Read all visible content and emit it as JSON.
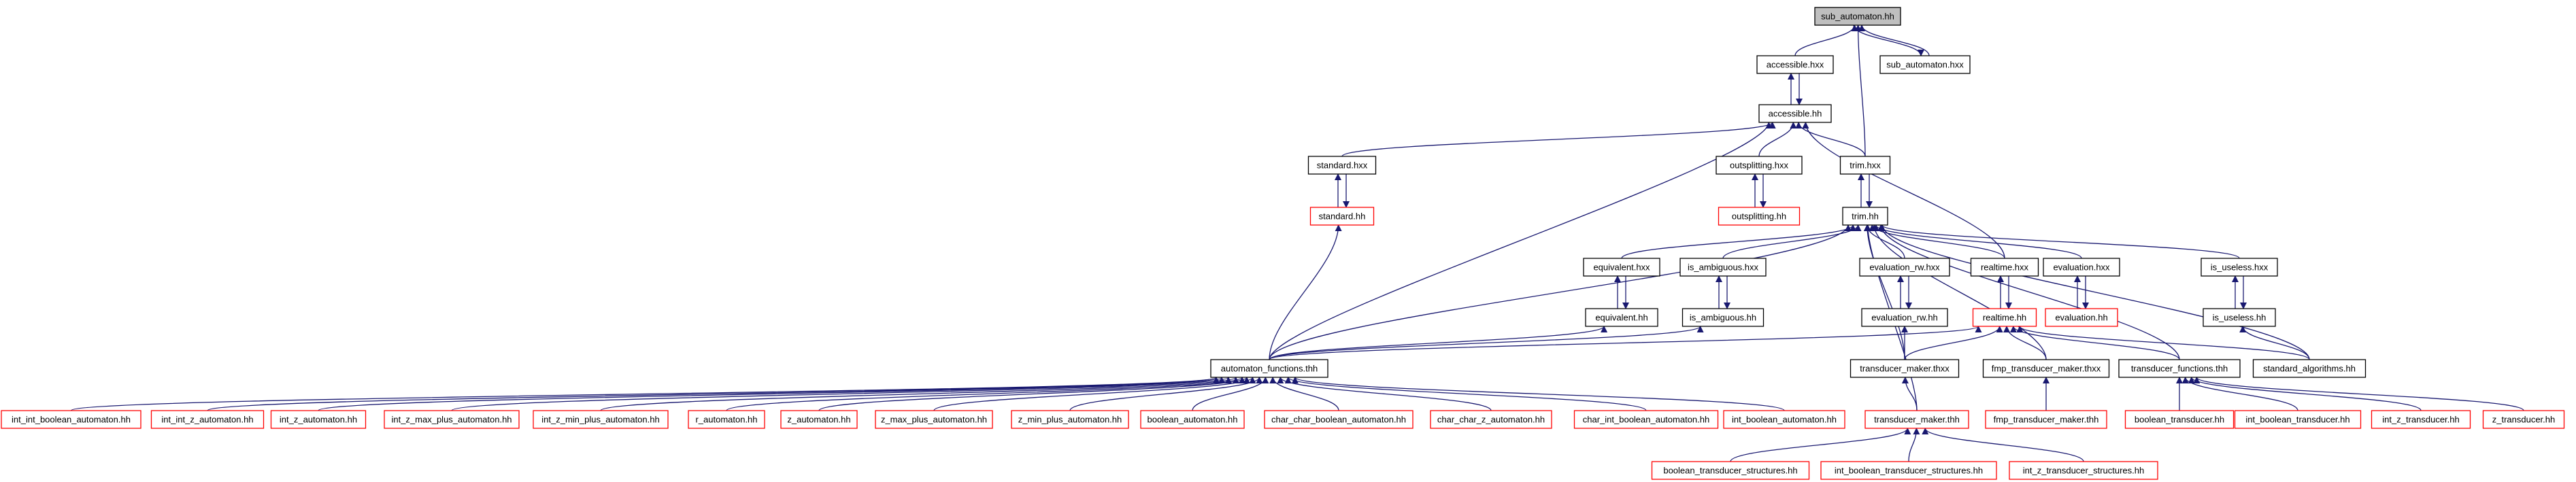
{
  "nodes": [
    {
      "id": "sub_automaton_hh",
      "label": "sub_automaton.hh",
      "style": "current"
    },
    {
      "id": "accessible_hxx",
      "label": "accessible.hxx",
      "style": "normal"
    },
    {
      "id": "sub_automaton_hxx",
      "label": "sub_automaton.hxx",
      "style": "normal"
    },
    {
      "id": "accessible_hh",
      "label": "accessible.hh",
      "style": "normal"
    },
    {
      "id": "standard_hxx",
      "label": "standard.hxx",
      "style": "normal"
    },
    {
      "id": "outsplitting_hxx",
      "label": "outsplitting.hxx",
      "style": "normal"
    },
    {
      "id": "trim_hxx",
      "label": "trim.hxx",
      "style": "normal"
    },
    {
      "id": "standard_hh",
      "label": "standard.hh",
      "style": "truncated"
    },
    {
      "id": "outsplitting_hh",
      "label": "outsplitting.hh",
      "style": "truncated"
    },
    {
      "id": "trim_hh",
      "label": "trim.hh",
      "style": "normal"
    },
    {
      "id": "equivalent_hxx",
      "label": "equivalent.hxx",
      "style": "normal"
    },
    {
      "id": "is_ambiguous_hxx",
      "label": "is_ambiguous.hxx",
      "style": "normal"
    },
    {
      "id": "evaluation_rw_hxx",
      "label": "evaluation_rw.hxx",
      "style": "normal"
    },
    {
      "id": "realtime_hxx",
      "label": "realtime.hxx",
      "style": "normal"
    },
    {
      "id": "evaluation_hxx",
      "label": "evaluation.hxx",
      "style": "normal"
    },
    {
      "id": "is_useless_hxx",
      "label": "is_useless.hxx",
      "style": "normal"
    },
    {
      "id": "equivalent_hh",
      "label": "equivalent.hh",
      "style": "normal"
    },
    {
      "id": "is_ambiguous_hh",
      "label": "is_ambiguous.hh",
      "style": "normal"
    },
    {
      "id": "evaluation_rw_hh",
      "label": "evaluation_rw.hh",
      "style": "normal"
    },
    {
      "id": "realtime_hh",
      "label": "realtime.hh",
      "style": "truncated"
    },
    {
      "id": "evaluation_hh",
      "label": "evaluation.hh",
      "style": "truncated"
    },
    {
      "id": "is_useless_hh",
      "label": "is_useless.hh",
      "style": "normal"
    },
    {
      "id": "automaton_functions_thh",
      "label": "automaton_functions.thh",
      "style": "normal"
    },
    {
      "id": "transducer_maker_thxx",
      "label": "transducer_maker.thxx",
      "style": "normal"
    },
    {
      "id": "fmp_transducer_maker_thxx",
      "label": "fmp_transducer_maker.thxx",
      "style": "normal"
    },
    {
      "id": "transducer_functions_thh",
      "label": "transducer_functions.thh",
      "style": "normal"
    },
    {
      "id": "standard_algorithms_hh",
      "label": "standard_algorithms.hh",
      "style": "normal"
    },
    {
      "id": "int_int_boolean_automaton_hh",
      "label": "int_int_boolean_automaton.hh",
      "style": "truncated"
    },
    {
      "id": "int_int_z_automaton_hh",
      "label": "int_int_z_automaton.hh",
      "style": "truncated"
    },
    {
      "id": "int_z_automaton_hh",
      "label": "int_z_automaton.hh",
      "style": "truncated"
    },
    {
      "id": "int_z_max_plus_automaton_hh",
      "label": "int_z_max_plus_automaton.hh",
      "style": "truncated"
    },
    {
      "id": "int_z_min_plus_automaton_hh",
      "label": "int_z_min_plus_automaton.hh",
      "style": "truncated"
    },
    {
      "id": "r_automaton_hh",
      "label": "r_automaton.hh",
      "style": "truncated"
    },
    {
      "id": "z_automaton_hh",
      "label": "z_automaton.hh",
      "style": "truncated"
    },
    {
      "id": "z_max_plus_automaton_hh",
      "label": "z_max_plus_automaton.hh",
      "style": "truncated"
    },
    {
      "id": "z_min_plus_automaton_hh",
      "label": "z_min_plus_automaton.hh",
      "style": "truncated"
    },
    {
      "id": "boolean_automaton_hh",
      "label": "boolean_automaton.hh",
      "style": "truncated"
    },
    {
      "id": "char_char_boolean_automaton_hh",
      "label": "char_char_boolean_automaton.hh",
      "style": "truncated"
    },
    {
      "id": "char_char_z_automaton_hh",
      "label": "char_char_z_automaton.hh",
      "style": "truncated"
    },
    {
      "id": "char_int_boolean_automaton_hh",
      "label": "char_int_boolean_automaton.hh",
      "style": "truncated"
    },
    {
      "id": "int_boolean_automaton_hh",
      "label": "int_boolean_automaton.hh",
      "style": "truncated"
    },
    {
      "id": "transducer_maker_thh",
      "label": "transducer_maker.thh",
      "style": "truncated"
    },
    {
      "id": "fmp_transducer_maker_thh",
      "label": "fmp_transducer_maker.thh",
      "style": "truncated"
    },
    {
      "id": "boolean_transducer_hh",
      "label": "boolean_transducer.hh",
      "style": "truncated"
    },
    {
      "id": "int_boolean_transducer_hh",
      "label": "int_boolean_transducer.hh",
      "style": "truncated"
    },
    {
      "id": "int_z_transducer_hh",
      "label": "int_z_transducer.hh",
      "style": "truncated"
    },
    {
      "id": "z_transducer_hh",
      "label": "z_transducer.hh",
      "style": "truncated"
    },
    {
      "id": "boolean_transducer_structures_hh",
      "label": "boolean_transducer_structures.hh",
      "style": "truncated"
    },
    {
      "id": "int_boolean_transducer_structures_hh",
      "label": "int_boolean_transducer_structures.hh",
      "style": "truncated"
    },
    {
      "id": "int_z_transducer_structures_hh",
      "label": "int_z_transducer_structures.hh",
      "style": "truncated"
    }
  ],
  "edges": [
    [
      "accessible_hxx",
      "sub_automaton_hh"
    ],
    [
      "sub_automaton_hxx",
      "sub_automaton_hh"
    ],
    [
      "sub_automaton_hh",
      "sub_automaton_hxx"
    ],
    [
      "trim_hxx",
      "sub_automaton_hh"
    ],
    [
      "accessible_hh",
      "accessible_hxx"
    ],
    [
      "accessible_hxx",
      "accessible_hh"
    ],
    [
      "standard_hxx",
      "accessible_hh"
    ],
    [
      "outsplitting_hxx",
      "accessible_hh"
    ],
    [
      "trim_hxx",
      "accessible_hh"
    ],
    [
      "realtime_hxx",
      "accessible_hh"
    ],
    [
      "automaton_functions_thh",
      "accessible_hh"
    ],
    [
      "standard_hh",
      "standard_hxx"
    ],
    [
      "standard_hxx",
      "standard_hh"
    ],
    [
      "outsplitting_hh",
      "outsplitting_hxx"
    ],
    [
      "outsplitting_hxx",
      "outsplitting_hh"
    ],
    [
      "trim_hh",
      "trim_hxx"
    ],
    [
      "trim_hxx",
      "trim_hh"
    ],
    [
      "equivalent_hxx",
      "trim_hh"
    ],
    [
      "is_ambiguous_hxx",
      "trim_hh"
    ],
    [
      "evaluation_rw_hxx",
      "trim_hh"
    ],
    [
      "realtime_hxx",
      "trim_hh"
    ],
    [
      "evaluation_hxx",
      "trim_hh"
    ],
    [
      "is_useless_hxx",
      "trim_hh"
    ],
    [
      "automaton_functions_thh",
      "trim_hh"
    ],
    [
      "transducer_maker_thxx",
      "trim_hh"
    ],
    [
      "transducer_maker_thh",
      "trim_hh"
    ],
    [
      "fmp_transducer_maker_thxx",
      "trim_hh"
    ],
    [
      "transducer_functions_thh",
      "trim_hh"
    ],
    [
      "standard_algorithms_hh",
      "trim_hh"
    ],
    [
      "automaton_functions_thh",
      "standard_hh"
    ],
    [
      "equivalent_hh",
      "equivalent_hxx"
    ],
    [
      "equivalent_hxx",
      "equivalent_hh"
    ],
    [
      "is_ambiguous_hh",
      "is_ambiguous_hxx"
    ],
    [
      "is_ambiguous_hxx",
      "is_ambiguous_hh"
    ],
    [
      "evaluation_rw_hh",
      "evaluation_rw_hxx"
    ],
    [
      "evaluation_rw_hxx",
      "evaluation_rw_hh"
    ],
    [
      "realtime_hh",
      "realtime_hxx"
    ],
    [
      "realtime_hxx",
      "realtime_hh"
    ],
    [
      "evaluation_hh",
      "evaluation_hxx"
    ],
    [
      "evaluation_hxx",
      "evaluation_hh"
    ],
    [
      "is_useless_hh",
      "is_useless_hxx"
    ],
    [
      "is_useless_hxx",
      "is_useless_hh"
    ],
    [
      "automaton_functions_thh",
      "equivalent_hh"
    ],
    [
      "automaton_functions_thh",
      "is_ambiguous_hh"
    ],
    [
      "transducer_maker_thxx",
      "evaluation_rw_hh"
    ],
    [
      "automaton_functions_thh",
      "realtime_hh"
    ],
    [
      "transducer_maker_thxx",
      "realtime_hh"
    ],
    [
      "fmp_transducer_maker_thxx",
      "realtime_hh"
    ],
    [
      "transducer_functions_thh",
      "realtime_hh"
    ],
    [
      "standard_algorithms_hh",
      "realtime_hh"
    ],
    [
      "standard_algorithms_hh",
      "is_useless_hh"
    ],
    [
      "int_int_boolean_automaton_hh",
      "automaton_functions_thh"
    ],
    [
      "int_int_z_automaton_hh",
      "automaton_functions_thh"
    ],
    [
      "int_z_automaton_hh",
      "automaton_functions_thh"
    ],
    [
      "int_z_max_plus_automaton_hh",
      "automaton_functions_thh"
    ],
    [
      "int_z_min_plus_automaton_hh",
      "automaton_functions_thh"
    ],
    [
      "r_automaton_hh",
      "automaton_functions_thh"
    ],
    [
      "z_automaton_hh",
      "automaton_functions_thh"
    ],
    [
      "z_max_plus_automaton_hh",
      "automaton_functions_thh"
    ],
    [
      "z_min_plus_automaton_hh",
      "automaton_functions_thh"
    ],
    [
      "boolean_automaton_hh",
      "automaton_functions_thh"
    ],
    [
      "char_char_boolean_automaton_hh",
      "automaton_functions_thh"
    ],
    [
      "char_char_z_automaton_hh",
      "automaton_functions_thh"
    ],
    [
      "char_int_boolean_automaton_hh",
      "automaton_functions_thh"
    ],
    [
      "int_boolean_automaton_hh",
      "automaton_functions_thh"
    ],
    [
      "transducer_maker_thh",
      "transducer_maker_thxx"
    ],
    [
      "fmp_transducer_maker_thh",
      "fmp_transducer_maker_thxx"
    ],
    [
      "boolean_transducer_hh",
      "transducer_functions_thh"
    ],
    [
      "int_boolean_transducer_hh",
      "transducer_functions_thh"
    ],
    [
      "int_z_transducer_hh",
      "transducer_functions_thh"
    ],
    [
      "z_transducer_hh",
      "transducer_functions_thh"
    ],
    [
      "boolean_transducer_structures_hh",
      "transducer_maker_thh"
    ],
    [
      "int_boolean_transducer_structures_hh",
      "transducer_maker_thh"
    ],
    [
      "int_z_transducer_structures_hh",
      "transducer_maker_thh"
    ]
  ],
  "colors": {
    "edge": "#191970",
    "node_border": "#000000",
    "truncated_border": "#ff0000",
    "current_fill": "#bfbfbf",
    "node_fill": "#ffffff",
    "text": "#000000"
  }
}
